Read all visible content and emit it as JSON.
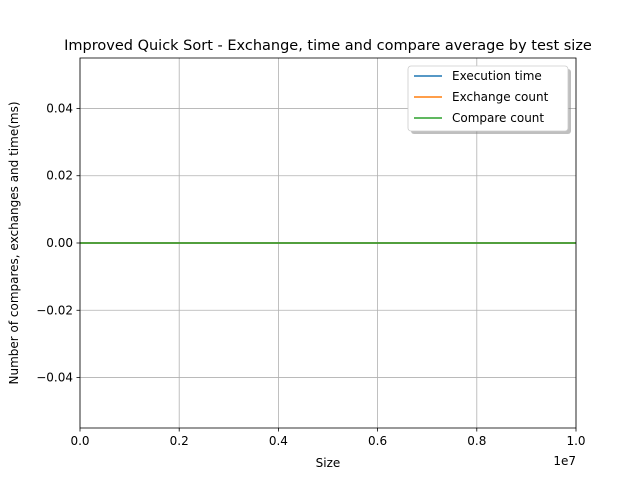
{
  "chart_data": {
    "type": "line",
    "title": "Improved Quick Sort - Exchange, time and compare average by test size",
    "xlabel": "Size",
    "ylabel": "Number of compares, exchanges and time(ms)",
    "x_offset_text": "1e7",
    "xlim": [
      0,
      1
    ],
    "ylim": [
      -0.055,
      0.055
    ],
    "x_ticks": [
      0,
      0.2,
      0.4,
      0.6,
      0.8,
      1.0
    ],
    "x_tick_labels": [
      "0.0",
      "0.2",
      "0.4",
      "0.6",
      "0.8",
      "1.0"
    ],
    "y_ticks": [
      -0.04,
      -0.02,
      0.0,
      0.02,
      0.04
    ],
    "y_tick_labels": [
      "−0.04",
      "−0.02",
      "0.00",
      "0.02",
      "0.04"
    ],
    "grid": true,
    "legend_position": "top-right",
    "series": [
      {
        "name": "Execution time",
        "color": "#1f77b4",
        "x": [
          0,
          1
        ],
        "y": [
          0,
          0
        ]
      },
      {
        "name": "Exchange count",
        "color": "#ff7f0e",
        "x": [
          0,
          1
        ],
        "y": [
          0,
          0
        ]
      },
      {
        "name": "Compare count",
        "color": "#2ca02c",
        "x": [
          0,
          1
        ],
        "y": [
          0,
          0
        ]
      }
    ]
  }
}
